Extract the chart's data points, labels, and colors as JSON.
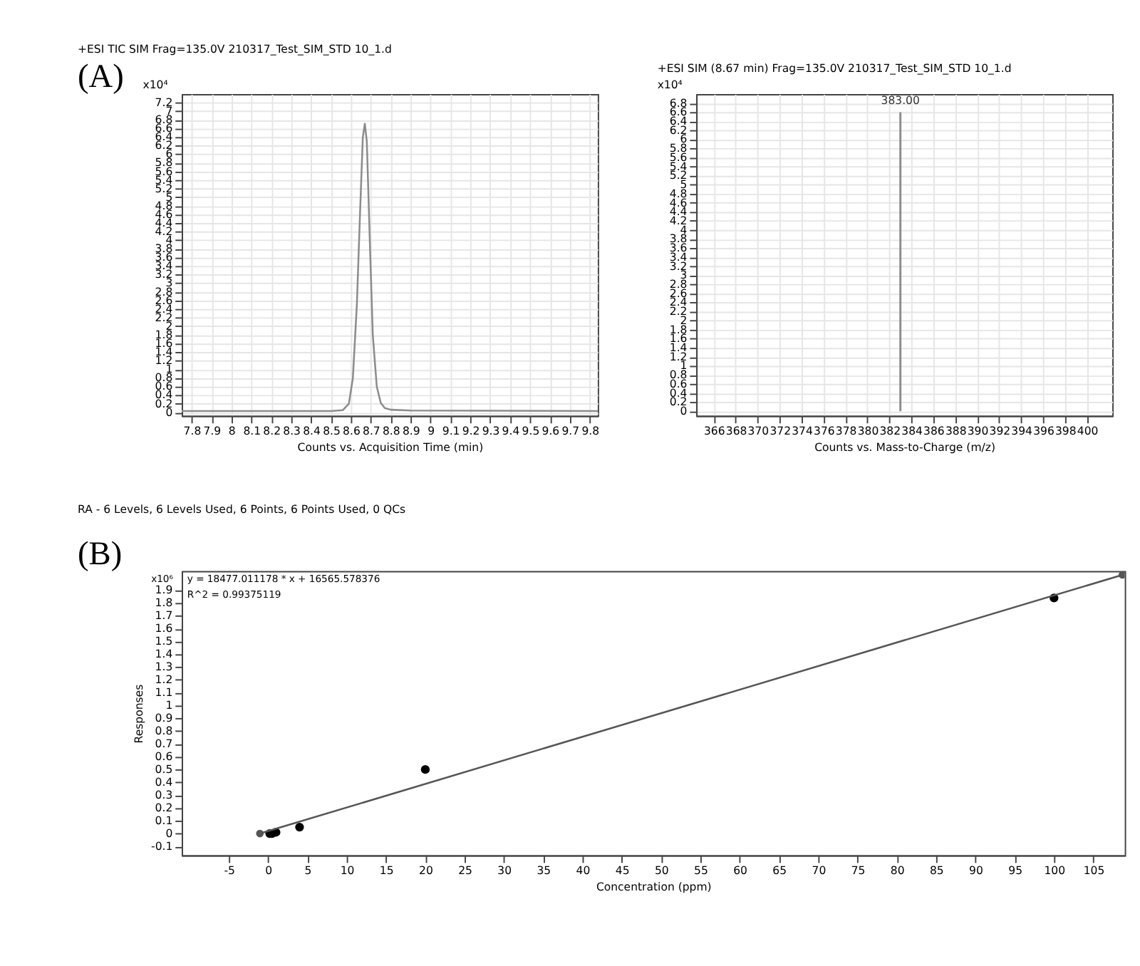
{
  "chart_data": [
    {
      "type": "line",
      "title": "+ESI TIC SIM Frag=135.0V 210317_Test_SIM_STD 10_1.d",
      "xlabel": "Counts vs. Acquisition Time (min)",
      "annotations": [
        "(A)",
        "x10⁴"
      ],
      "x": [
        7.75,
        8.5,
        8.56,
        8.59,
        8.61,
        8.63,
        8.645,
        8.66,
        8.67,
        8.68,
        8.695,
        8.71,
        8.73,
        8.75,
        8.77,
        8.8,
        8.9,
        9.84
      ],
      "series": [
        {
          "color": "#8c8c8c",
          "values": [
            0.03,
            0.03,
            0.05,
            0.2,
            0.8,
            2.5,
            4.5,
            6.4,
            6.71,
            6.3,
            4.0,
            1.8,
            0.6,
            0.22,
            0.1,
            0.06,
            0.04,
            0.03
          ]
        }
      ],
      "xlim": [
        7.75,
        9.84
      ],
      "xticks": [
        7.8,
        7.9,
        8,
        8.1,
        8.2,
        8.3,
        8.4,
        8.5,
        8.6,
        8.7,
        8.8,
        8.9,
        9,
        9.1,
        9.2,
        9.3,
        9.4,
        9.5,
        9.6,
        9.7,
        9.8
      ],
      "ylim": [
        -0.08,
        7.4
      ],
      "yticks": [
        0,
        0.2,
        0.4,
        0.6,
        0.8,
        1,
        1.2,
        1.4,
        1.6,
        1.8,
        2,
        2.2,
        2.4,
        2.6,
        2.8,
        3,
        3.2,
        3.4,
        3.6,
        3.8,
        4,
        4.2,
        4.4,
        4.6,
        4.8,
        5,
        5.2,
        5.4,
        5.6,
        5.8,
        6,
        6.2,
        6.4,
        6.6,
        6.8,
        7,
        7.2
      ],
      "grid": true,
      "marker": "none",
      "line_style": "solid"
    },
    {
      "type": "bar",
      "title": "+ESI SIM (8.67 min) Frag=135.0V 210317_Test_SIM_STD 10_1.d",
      "xlabel": "Counts vs. Mass-to-Charge (m/z)",
      "annotations": [
        "x10⁴",
        {
          "text": "383.00",
          "x": 383,
          "y": 6.6
        }
      ],
      "x": [
        383
      ],
      "series": [
        {
          "color": "#8c8c8c",
          "values": [
            6.6
          ]
        }
      ],
      "xlim": [
        364.4,
        402.3
      ],
      "xticks": [
        366,
        368,
        370,
        372,
        374,
        376,
        378,
        380,
        382,
        384,
        386,
        388,
        390,
        392,
        394,
        396,
        398,
        400
      ],
      "ylim": [
        -0.1,
        7.0
      ],
      "yticks": [
        0,
        0.2,
        0.4,
        0.6,
        0.8,
        1,
        1.2,
        1.4,
        1.6,
        1.8,
        2,
        2.2,
        2.4,
        2.6,
        2.8,
        3,
        3.2,
        3.4,
        3.6,
        3.8,
        4,
        4.2,
        4.4,
        4.6,
        4.8,
        5,
        5.2,
        5.4,
        5.6,
        5.8,
        6,
        6.2,
        6.4,
        6.6,
        6.8
      ],
      "grid": true
    },
    {
      "type": "scatter",
      "title": "RA - 6 Levels, 6 Levels Used, 6 Points, 6 Points Used, 0 QCs",
      "xlabel": "Concentration (ppm)",
      "ylabel": "Responses",
      "annotations": [
        "(B)",
        "x10⁶",
        "y = 18477.011178 * x + 16565.578376",
        "R^2 = 0.99375119"
      ],
      "series": [
        {
          "type": "scatter",
          "color": "#000000",
          "x": [
            0.2,
            0.5,
            1,
            4,
            20,
            100
          ],
          "values": [
            0.0,
            0.0,
            0.01,
            0.05,
            0.5,
            1.84
          ]
        },
        {
          "type": "line",
          "color": "#555555",
          "x": [
            -1.05,
            108.7
          ],
          "values": [
            0.0,
            2.02
          ]
        }
      ],
      "xlim": [
        -11,
        109
      ],
      "xticks": [
        -5,
        0,
        5,
        10,
        15,
        20,
        25,
        30,
        35,
        40,
        45,
        50,
        55,
        60,
        65,
        70,
        75,
        80,
        85,
        90,
        95,
        100,
        105
      ],
      "ylim": [
        -0.17,
        2.05
      ],
      "yticks": [
        -0.1,
        0,
        0.1,
        0.2,
        0.3,
        0.4,
        0.5,
        0.6,
        0.7,
        0.8,
        0.9,
        1,
        1.1,
        1.2,
        1.3,
        1.4,
        1.5,
        1.6,
        1.7,
        1.8,
        1.9
      ],
      "grid": false,
      "marker": "circle"
    }
  ]
}
